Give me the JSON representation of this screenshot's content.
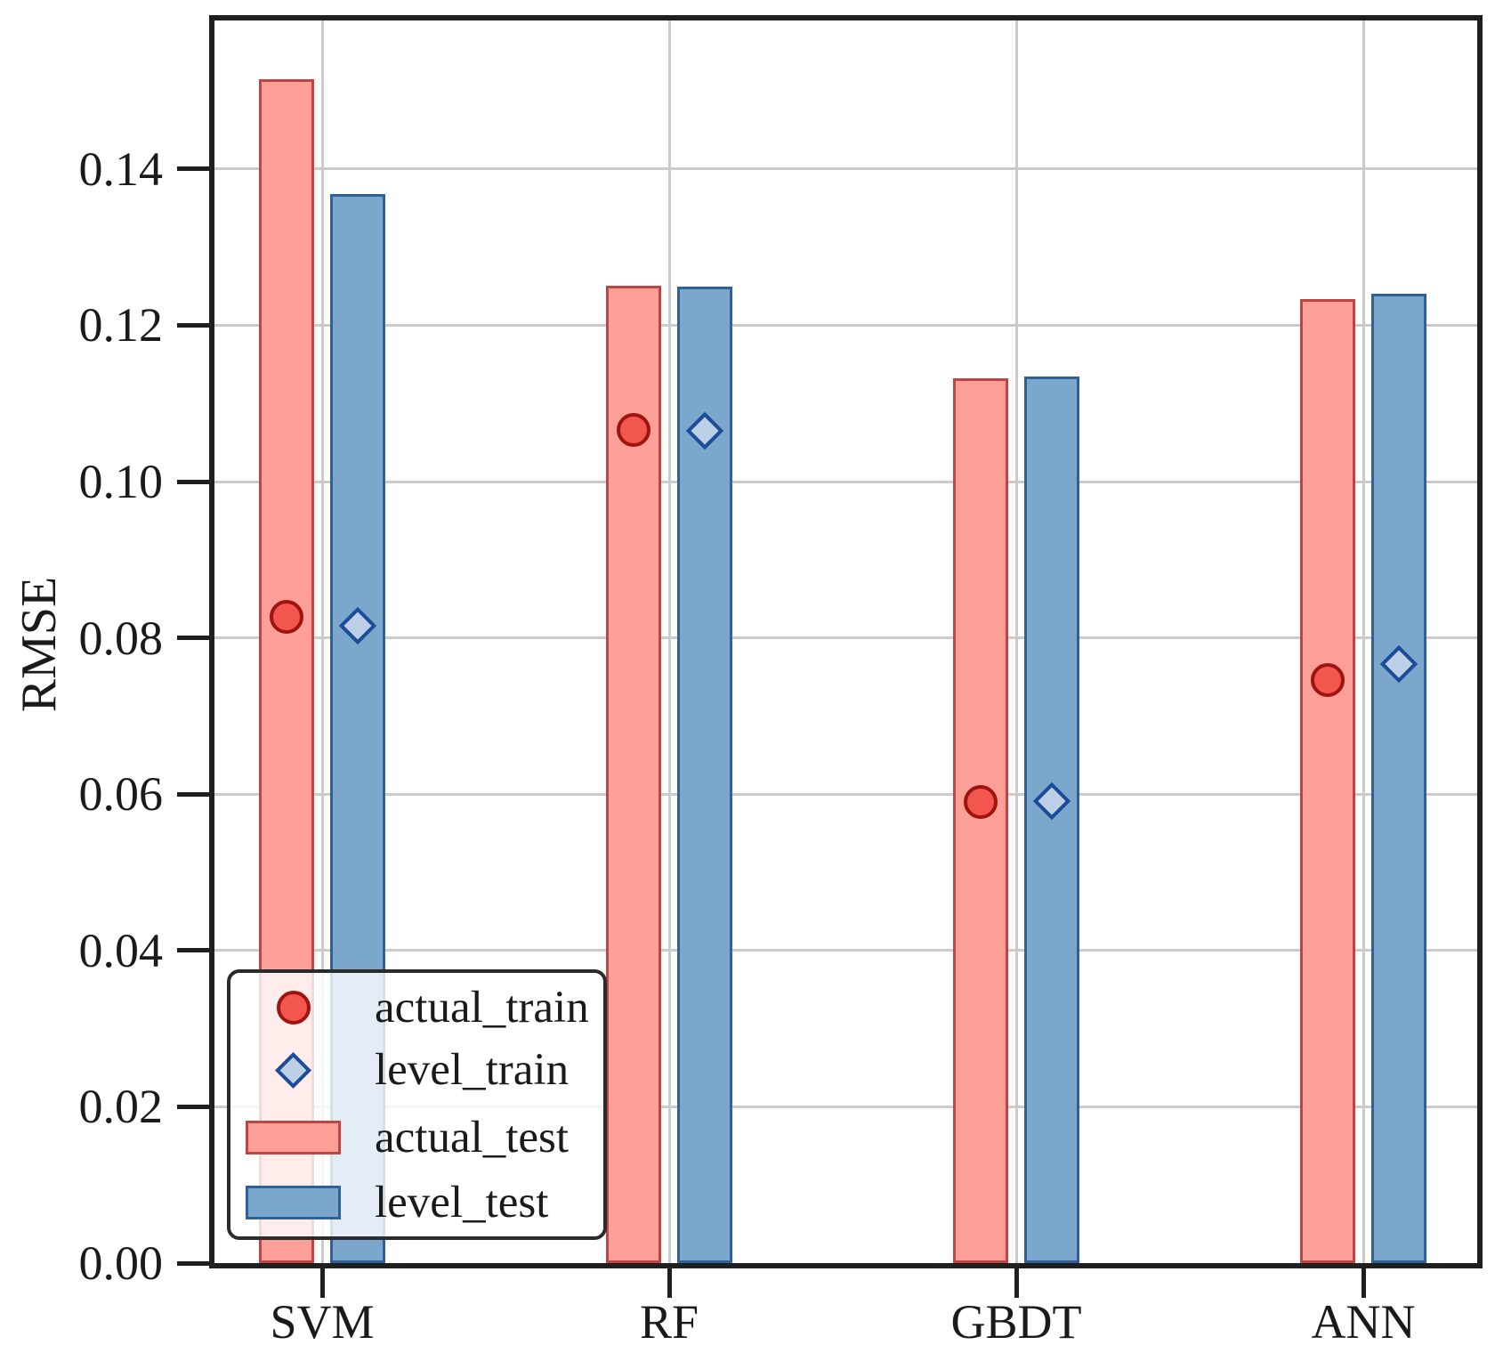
{
  "chart_data": {
    "type": "bar",
    "title": "",
    "xlabel": "",
    "ylabel": "RMSE",
    "categories": [
      "SVM",
      "RF",
      "GBDT",
      "ANN"
    ],
    "series": [
      {
        "name": "actual_train",
        "render": "marker-circle",
        "values": [
          0.0827,
          0.1066,
          0.059,
          0.0746
        ],
        "fill": "#F2564F",
        "edge": "#A01410"
      },
      {
        "name": "level_train",
        "render": "marker-diamond",
        "values": [
          0.0816,
          0.1065,
          0.0591,
          0.0766
        ],
        "fill": "#BDCEE7",
        "edge": "#1C4C99"
      },
      {
        "name": "actual_test",
        "render": "bar",
        "values": [
          0.1515,
          0.1251,
          0.1132,
          0.1233
        ],
        "fill": "#FC9F99",
        "edge": "#C0443F"
      },
      {
        "name": "level_test",
        "render": "bar",
        "values": [
          0.1368,
          0.125,
          0.1134,
          0.124
        ],
        "fill": "#7BA7CD",
        "edge": "#2F6096"
      }
    ],
    "yticks": [
      {
        "label": "0.00",
        "value": 0.0
      },
      {
        "label": "0.02",
        "value": 0.02
      },
      {
        "label": "0.04",
        "value": 0.04
      },
      {
        "label": "0.06",
        "value": 0.06
      },
      {
        "label": "0.08",
        "value": 0.08
      },
      {
        "label": "0.10",
        "value": 0.1
      },
      {
        "label": "0.12",
        "value": 0.12
      },
      {
        "label": "0.14",
        "value": 0.14
      }
    ],
    "ylim": [
      0,
      0.159
    ],
    "grid": true,
    "legend_position": "lower left",
    "legend_entries": [
      "actual_train",
      "level_train",
      "actual_test",
      "level_test"
    ]
  },
  "colors": {
    "gridline": "#cbcbcb",
    "spine": "#1f1f1f",
    "text": "#1a1a1a",
    "legend_border": "#2b2b2b",
    "legend_background": "rgba(255,255,255,0.8)"
  }
}
